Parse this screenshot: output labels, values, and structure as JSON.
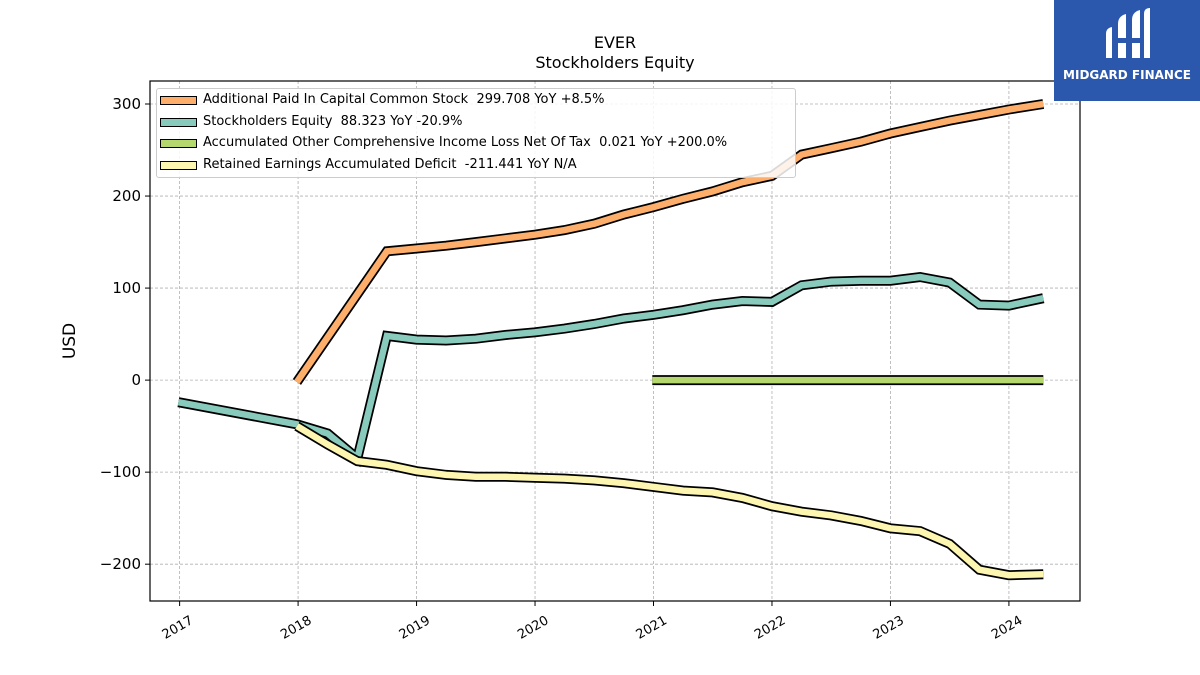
{
  "brand": {
    "name": "MIDGARD FINANCE"
  },
  "chart_data": {
    "type": "line",
    "title": "EVER",
    "subtitle": "Stockholders  Equity",
    "ylabel": "USD",
    "xlabel": "",
    "xlim": [
      2016.75,
      2024.6
    ],
    "ylim": [
      -240,
      325
    ],
    "yticks": [
      -200,
      -100,
      0,
      100,
      200,
      300
    ],
    "xticks": [
      "2017",
      "2018",
      "2019",
      "2020",
      "2021",
      "2022",
      "2023",
      "2024"
    ],
    "grid": true,
    "legend_position": "top-left",
    "series": [
      {
        "name": "Additional Paid In Capital Common Stock  299.708 YoY +8.5%",
        "color": "#fdae6b",
        "points": [
          [
            2017.99,
            -2
          ],
          [
            2018.75,
            140
          ],
          [
            2019.0,
            143
          ],
          [
            2019.25,
            146
          ],
          [
            2019.5,
            150
          ],
          [
            2019.75,
            154
          ],
          [
            2020.0,
            158
          ],
          [
            2020.25,
            163
          ],
          [
            2020.5,
            170
          ],
          [
            2020.75,
            180
          ],
          [
            2021.0,
            188
          ],
          [
            2021.25,
            197
          ],
          [
            2021.5,
            205
          ],
          [
            2021.75,
            215
          ],
          [
            2022.0,
            222
          ],
          [
            2022.25,
            245
          ],
          [
            2022.5,
            252
          ],
          [
            2022.75,
            259
          ],
          [
            2023.0,
            268
          ],
          [
            2023.25,
            275
          ],
          [
            2023.5,
            282
          ],
          [
            2023.75,
            288
          ],
          [
            2024.0,
            294
          ],
          [
            2024.29,
            300
          ]
        ]
      },
      {
        "name": "Stockholders Equity  88.323 YoY -20.9%",
        "color": "#88cbbd",
        "points": [
          [
            2016.99,
            -24
          ],
          [
            2017.99,
            -48
          ],
          [
            2018.25,
            -58
          ],
          [
            2018.5,
            -85
          ],
          [
            2018.75,
            48
          ],
          [
            2019.0,
            44
          ],
          [
            2019.25,
            43
          ],
          [
            2019.5,
            45
          ],
          [
            2019.75,
            49
          ],
          [
            2020.0,
            52
          ],
          [
            2020.25,
            56
          ],
          [
            2020.5,
            61
          ],
          [
            2020.75,
            67
          ],
          [
            2021.0,
            71
          ],
          [
            2021.25,
            76
          ],
          [
            2021.5,
            82
          ],
          [
            2021.75,
            86
          ],
          [
            2022.0,
            85
          ],
          [
            2022.25,
            103
          ],
          [
            2022.5,
            107
          ],
          [
            2022.75,
            108
          ],
          [
            2023.0,
            108
          ],
          [
            2023.25,
            112
          ],
          [
            2023.5,
            106
          ],
          [
            2023.75,
            82
          ],
          [
            2024.0,
            81
          ],
          [
            2024.29,
            89
          ]
        ]
      },
      {
        "name": "Accumulated Other Comprehensive Income Loss Net Of Tax  0.021 YoY +200.0%",
        "color": "#b5d86e",
        "points": [
          [
            2020.99,
            0.02
          ],
          [
            2024.29,
            0.02
          ]
        ]
      },
      {
        "name": "Retained Earnings Accumulated Deficit  -211.441 YoY N/A",
        "color": "#fdf6b0",
        "points": [
          [
            2017.99,
            -50
          ],
          [
            2018.25,
            -70
          ],
          [
            2018.5,
            -88
          ],
          [
            2018.75,
            -92
          ],
          [
            2019.0,
            -99
          ],
          [
            2019.25,
            -103
          ],
          [
            2019.5,
            -105
          ],
          [
            2019.75,
            -105
          ],
          [
            2020.0,
            -106
          ],
          [
            2020.25,
            -107
          ],
          [
            2020.5,
            -109
          ],
          [
            2020.75,
            -112
          ],
          [
            2021.0,
            -116
          ],
          [
            2021.25,
            -120
          ],
          [
            2021.5,
            -122
          ],
          [
            2021.75,
            -128
          ],
          [
            2022.0,
            -137
          ],
          [
            2022.25,
            -143
          ],
          [
            2022.5,
            -147
          ],
          [
            2022.75,
            -153
          ],
          [
            2023.0,
            -161
          ],
          [
            2023.25,
            -164
          ],
          [
            2023.5,
            -178
          ],
          [
            2023.75,
            -206
          ],
          [
            2024.0,
            -212
          ],
          [
            2024.29,
            -211
          ]
        ]
      }
    ]
  }
}
